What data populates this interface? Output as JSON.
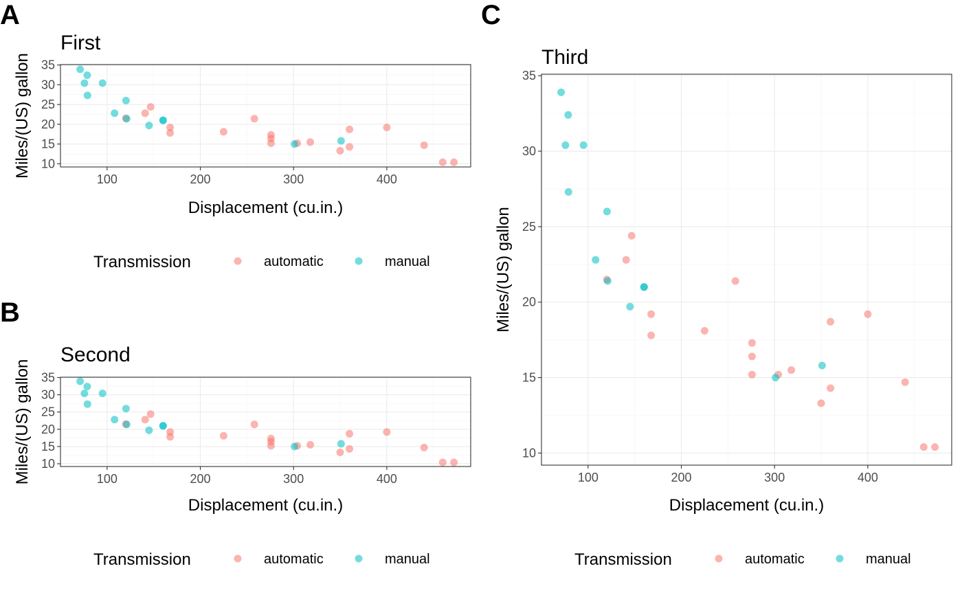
{
  "legend_title": "Transmission",
  "series_colors": {
    "automatic": "#F8766D",
    "manual": "#00BFC4"
  },
  "chart_data": [
    {
      "panel": "A",
      "type": "scatter",
      "title": "First",
      "xlabel": "Displacement (cu.in.)",
      "ylabel": "Miles/(US) gallon",
      "xlim": [
        50,
        490
      ],
      "ylim": [
        9.2,
        35.1
      ],
      "x_ticks": [
        100,
        200,
        300,
        400
      ],
      "y_ticks": [
        10,
        15,
        20,
        25,
        30,
        35
      ],
      "grid": true,
      "legend_position": "bottom",
      "series": [
        {
          "name": "automatic",
          "points": [
            [
              258,
              21.4
            ],
            [
              360,
              18.7
            ],
            [
              225,
              18.1
            ],
            [
              360,
              14.3
            ],
            [
              146.7,
              24.4
            ],
            [
              140.8,
              22.8
            ],
            [
              167.6,
              19.2
            ],
            [
              167.6,
              17.8
            ],
            [
              275.8,
              16.4
            ],
            [
              275.8,
              17.3
            ],
            [
              275.8,
              15.2
            ],
            [
              472,
              10.4
            ],
            [
              460,
              10.4
            ],
            [
              440,
              14.7
            ],
            [
              120.1,
              21.5
            ],
            [
              318,
              15.5
            ],
            [
              304,
              15.2
            ],
            [
              350,
              13.3
            ],
            [
              400,
              19.2
            ]
          ]
        },
        {
          "name": "manual",
          "points": [
            [
              160,
              21
            ],
            [
              160,
              21
            ],
            [
              108,
              22.8
            ],
            [
              78.7,
              32.4
            ],
            [
              75.7,
              30.4
            ],
            [
              71.1,
              33.9
            ],
            [
              79,
              27.3
            ],
            [
              120.3,
              26
            ],
            [
              95.1,
              30.4
            ],
            [
              351,
              15.8
            ],
            [
              145,
              19.7
            ],
            [
              301,
              15
            ],
            [
              121,
              21.4
            ]
          ]
        }
      ]
    },
    {
      "panel": "B",
      "type": "scatter",
      "title": "Second",
      "xlabel": "Displacement (cu.in.)",
      "ylabel": "Miles/(US) gallon",
      "xlim": [
        50,
        490
      ],
      "ylim": [
        9.2,
        35.1
      ],
      "x_ticks": [
        100,
        200,
        300,
        400
      ],
      "y_ticks": [
        10,
        15,
        20,
        25,
        30,
        35
      ],
      "grid": true,
      "legend_position": "bottom",
      "series": [
        {
          "name": "automatic",
          "points": [
            [
              258,
              21.4
            ],
            [
              360,
              18.7
            ],
            [
              225,
              18.1
            ],
            [
              360,
              14.3
            ],
            [
              146.7,
              24.4
            ],
            [
              140.8,
              22.8
            ],
            [
              167.6,
              19.2
            ],
            [
              167.6,
              17.8
            ],
            [
              275.8,
              16.4
            ],
            [
              275.8,
              17.3
            ],
            [
              275.8,
              15.2
            ],
            [
              472,
              10.4
            ],
            [
              460,
              10.4
            ],
            [
              440,
              14.7
            ],
            [
              120.1,
              21.5
            ],
            [
              318,
              15.5
            ],
            [
              304,
              15.2
            ],
            [
              350,
              13.3
            ],
            [
              400,
              19.2
            ]
          ]
        },
        {
          "name": "manual",
          "points": [
            [
              160,
              21
            ],
            [
              160,
              21
            ],
            [
              108,
              22.8
            ],
            [
              78.7,
              32.4
            ],
            [
              75.7,
              30.4
            ],
            [
              71.1,
              33.9
            ],
            [
              79,
              27.3
            ],
            [
              120.3,
              26
            ],
            [
              95.1,
              30.4
            ],
            [
              351,
              15.8
            ],
            [
              145,
              19.7
            ],
            [
              301,
              15
            ],
            [
              121,
              21.4
            ]
          ]
        }
      ]
    },
    {
      "panel": "C",
      "type": "scatter",
      "title": "Third",
      "xlabel": "Displacement (cu.in.)",
      "ylabel": "Miles/(US) gallon",
      "xlim": [
        50,
        490
      ],
      "ylim": [
        9.2,
        35.1
      ],
      "x_ticks": [
        100,
        200,
        300,
        400
      ],
      "y_ticks": [
        10,
        15,
        20,
        25,
        30,
        35
      ],
      "grid": true,
      "legend_position": "bottom",
      "series": [
        {
          "name": "automatic",
          "points": [
            [
              258,
              21.4
            ],
            [
              360,
              18.7
            ],
            [
              225,
              18.1
            ],
            [
              360,
              14.3
            ],
            [
              146.7,
              24.4
            ],
            [
              140.8,
              22.8
            ],
            [
              167.6,
              19.2
            ],
            [
              167.6,
              17.8
            ],
            [
              275.8,
              16.4
            ],
            [
              275.8,
              17.3
            ],
            [
              275.8,
              15.2
            ],
            [
              472,
              10.4
            ],
            [
              460,
              10.4
            ],
            [
              440,
              14.7
            ],
            [
              120.1,
              21.5
            ],
            [
              318,
              15.5
            ],
            [
              304,
              15.2
            ],
            [
              350,
              13.3
            ],
            [
              400,
              19.2
            ]
          ]
        },
        {
          "name": "manual",
          "points": [
            [
              160,
              21
            ],
            [
              160,
              21
            ],
            [
              108,
              22.8
            ],
            [
              78.7,
              32.4
            ],
            [
              75.7,
              30.4
            ],
            [
              71.1,
              33.9
            ],
            [
              79,
              27.3
            ],
            [
              120.3,
              26
            ],
            [
              95.1,
              30.4
            ],
            [
              351,
              15.8
            ],
            [
              145,
              19.7
            ],
            [
              301,
              15
            ],
            [
              121,
              21.4
            ]
          ]
        }
      ]
    }
  ]
}
